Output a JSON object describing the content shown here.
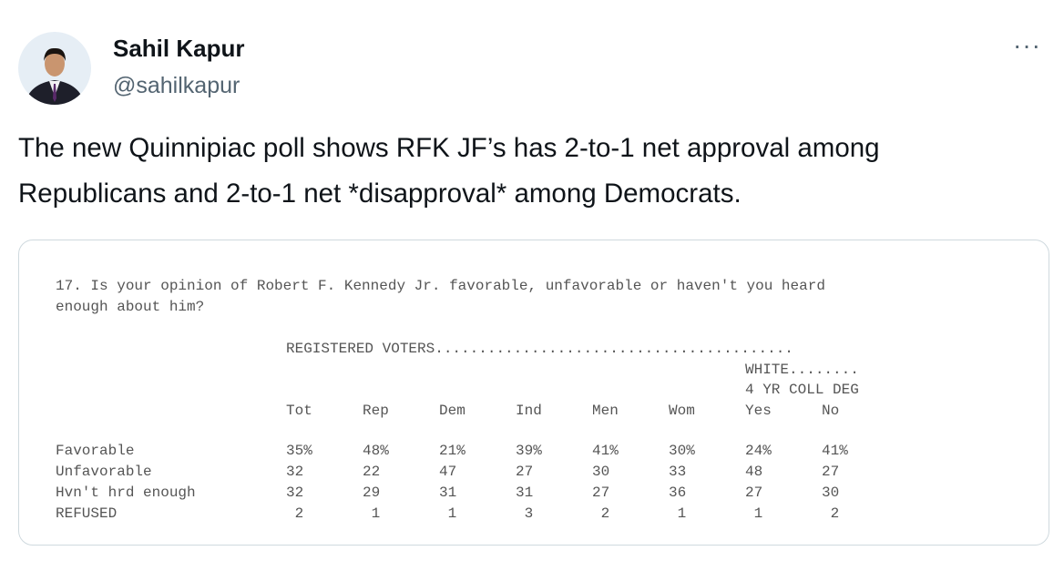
{
  "author": {
    "name": "Sahil Kapur",
    "handle": "@sahilkapur"
  },
  "post": {
    "text_lines": [
      "The new Quinnipiac poll shows RFK JF’s has 2-to-1 net approval among",
      "Republicans and 2-to-1 net *disapproval* among Democrats."
    ]
  },
  "table": {
    "question_lines": [
      "17. Is your opinion of Robert F. Kennedy Jr. favorable, unfavorable or haven't you heard",
      "enough about him?"
    ],
    "group_header": "REGISTERED VOTERS.........................................",
    "subgroup_header": "WHITE........",
    "subgroup_subheader": "4 YR COLL DEG",
    "columns": [
      "Tot",
      "Rep",
      "Dem",
      "Ind",
      "Men",
      "Wom",
      "Yes",
      "No"
    ],
    "rows": [
      {
        "label": "Favorable",
        "cells": [
          "35%",
          "48%",
          "21%",
          "39%",
          "41%",
          "30%",
          "24%",
          "41%"
        ]
      },
      {
        "label": "Unfavorable",
        "cells": [
          "32",
          "22",
          "47",
          "27",
          "30",
          "33",
          "48",
          "27"
        ]
      },
      {
        "label": "Hvn't hrd enough",
        "cells": [
          "32",
          "29",
          "31",
          "31",
          "27",
          "36",
          "27",
          "30"
        ]
      },
      {
        "label": "REFUSED",
        "cells": [
          "2",
          "1",
          "1",
          "3",
          "2",
          "1",
          "1",
          "2"
        ]
      }
    ]
  }
}
